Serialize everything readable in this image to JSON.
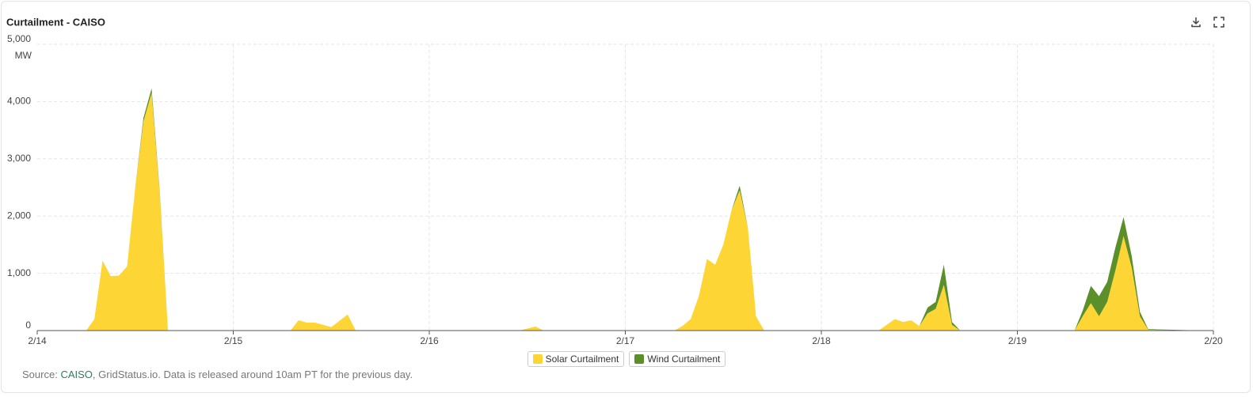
{
  "chart_data": {
    "type": "area",
    "stacked": true,
    "title": "Curtailment - CAISO",
    "y_unit": "MW",
    "x": [
      0,
      6,
      7,
      8,
      9,
      10,
      11,
      12,
      13,
      14,
      15,
      16,
      31,
      32,
      33,
      34,
      36,
      38,
      39,
      59,
      61,
      62,
      78,
      79,
      80,
      81,
      82,
      83,
      84,
      85,
      86,
      87,
      88,
      89,
      103,
      104,
      105,
      106,
      107,
      108,
      109,
      110,
      111,
      112,
      113,
      127,
      128,
      129,
      130,
      131,
      132,
      133,
      134,
      135,
      136,
      137,
      143,
      144
    ],
    "series": [
      {
        "name": "Solar Curtailment",
        "color": "#fdd535",
        "values": [
          0,
          0,
          200,
          1220,
          950,
          960,
          1120,
          2500,
          3650,
          4150,
          2400,
          0,
          0,
          180,
          140,
          140,
          60,
          280,
          0,
          0,
          70,
          0,
          0,
          80,
          200,
          600,
          1250,
          1150,
          1500,
          2100,
          2450,
          1800,
          250,
          0,
          0,
          100,
          200,
          150,
          180,
          80,
          300,
          380,
          800,
          100,
          0,
          0,
          250,
          480,
          250,
          500,
          1050,
          1650,
          1100,
          250,
          20,
          10,
          0,
          0
        ]
      },
      {
        "name": "Wind Curtailment",
        "color": "#5b8f2a",
        "values": [
          0,
          0,
          0,
          0,
          0,
          0,
          0,
          0,
          60,
          80,
          30,
          0,
          0,
          0,
          0,
          0,
          0,
          0,
          0,
          0,
          0,
          0,
          0,
          0,
          0,
          0,
          0,
          0,
          0,
          0,
          80,
          0,
          0,
          0,
          0,
          0,
          0,
          0,
          0,
          0,
          100,
          120,
          350,
          50,
          0,
          0,
          100,
          300,
          350,
          350,
          400,
          330,
          200,
          80,
          10,
          10,
          0,
          0
        ]
      }
    ],
    "xlim": [
      0,
      144
    ],
    "xticks": [
      {
        "value": 0,
        "label": "2/14"
      },
      {
        "value": 24,
        "label": "2/15"
      },
      {
        "value": 48,
        "label": "2/16"
      },
      {
        "value": 72,
        "label": "2/17"
      },
      {
        "value": 96,
        "label": "2/18"
      },
      {
        "value": 120,
        "label": "2/19"
      },
      {
        "value": 144,
        "label": "2/20"
      }
    ],
    "ylim": [
      0,
      5000
    ],
    "yticks": [
      0,
      {
        "value": 1000,
        "label": "1,000"
      },
      {
        "value": 2000,
        "label": "2,000"
      },
      {
        "value": 3000,
        "label": "3,000"
      },
      {
        "value": 4000,
        "label": "4,000"
      },
      {
        "value": 5000,
        "label": "5,000"
      }
    ],
    "grid": true
  },
  "footer": {
    "prefix": "Source:",
    "link": "CAISO",
    "text": ", GridStatus.io. Data is released around 10am PT for the previous day."
  }
}
